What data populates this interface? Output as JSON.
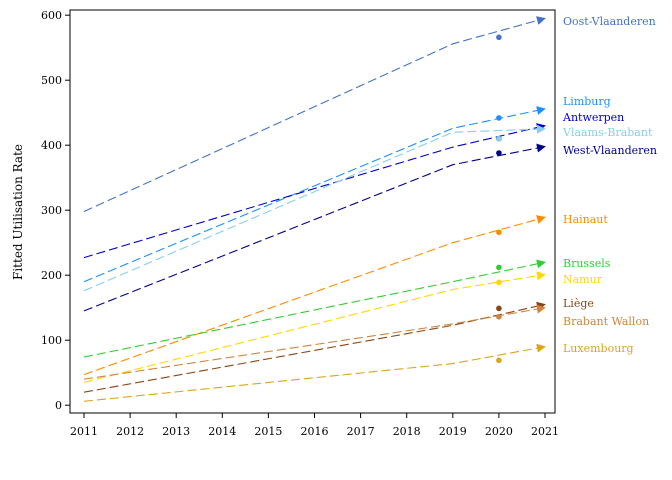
{
  "chart_data": {
    "type": "line",
    "title": "",
    "xlabel": "",
    "ylabel": "Fitted Utilisation Rate",
    "x": [
      2011,
      2012,
      2013,
      2014,
      2015,
      2016,
      2017,
      2018,
      2019,
      2020,
      2021
    ],
    "xlim": [
      2011,
      2021
    ],
    "ylim": [
      -12,
      608
    ],
    "yticks": [
      0,
      100,
      200,
      300,
      400,
      500,
      600
    ],
    "grid": false,
    "legend": "right",
    "series": [
      {
        "name": "Oost-Vlaanderen",
        "color": "#4472c4",
        "x": [
          2011,
          2019,
          2021
        ],
        "values": [
          298,
          556,
          595
        ],
        "observed": {
          "x": 2020,
          "y": 566
        }
      },
      {
        "name": "Limburg",
        "color": "#1e90ff",
        "x": [
          2011,
          2019,
          2021
        ],
        "values": [
          190,
          426,
          456
        ],
        "observed": {
          "x": 2020,
          "y": 442
        }
      },
      {
        "name": "Antwerpen",
        "color": "#0000cd",
        "x": [
          2011,
          2019,
          2021
        ],
        "values": [
          227,
          397,
          430
        ],
        "observed": {
          "x": 2020,
          "y": 410
        }
      },
      {
        "name": "Vlaams-Brabant",
        "color": "#87ceeb",
        "x": [
          2011,
          2019,
          2021
        ],
        "values": [
          176,
          420,
          425
        ],
        "observed": {
          "x": 2020,
          "y": 410
        }
      },
      {
        "name": "West-Vlaanderen",
        "color": "#00008b",
        "x": [
          2011,
          2019,
          2021
        ],
        "values": [
          145,
          370,
          398
        ],
        "observed": {
          "x": 2020,
          "y": 388
        }
      },
      {
        "name": "Hainaut",
        "color": "#ff8c00",
        "x": [
          2011,
          2019,
          2021
        ],
        "values": [
          47,
          250,
          289
        ],
        "observed": {
          "x": 2020,
          "y": 266
        }
      },
      {
        "name": "Brussels",
        "color": "#32cd32",
        "x": [
          2011,
          2019,
          2021
        ],
        "values": [
          74,
          190,
          220
        ],
        "observed": {
          "x": 2020,
          "y": 212
        }
      },
      {
        "name": "Namur",
        "color": "#ffd700",
        "x": [
          2011,
          2019,
          2021
        ],
        "values": [
          35,
          178,
          201
        ],
        "observed": {
          "x": 2020,
          "y": 189
        }
      },
      {
        "name": "Liège",
        "color": "#8b4513",
        "x": [
          2011,
          2019,
          2021
        ],
        "values": [
          20,
          123,
          155
        ],
        "observed": {
          "x": 2020,
          "y": 149
        }
      },
      {
        "name": "Brabant Wallon",
        "color": "#cd853f",
        "x": [
          2011,
          2019,
          2021
        ],
        "values": [
          40,
          125,
          150
        ],
        "observed": {
          "x": 2020,
          "y": 136
        }
      },
      {
        "name": "Luxembourg",
        "color": "#daa520",
        "x": [
          2011,
          2019,
          2021
        ],
        "values": [
          6,
          64,
          90
        ],
        "observed": {
          "x": 2020,
          "y": 69
        }
      }
    ]
  }
}
